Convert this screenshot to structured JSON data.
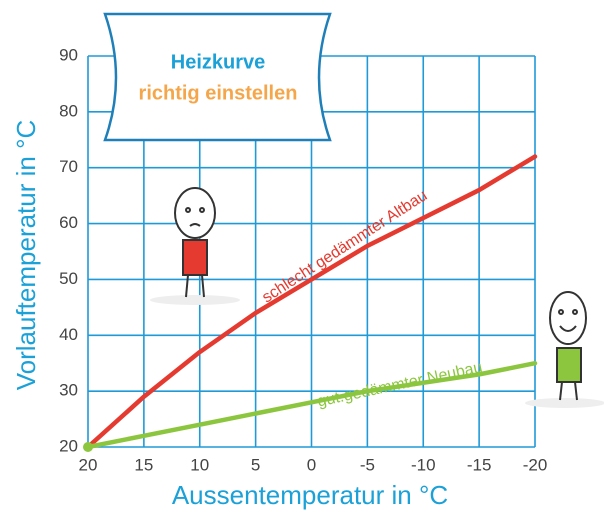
{
  "chart_data": {
    "type": "line",
    "title": "Heizkurve",
    "subtitle": "richtig einstellen",
    "x_label": "Aussentemperatur in °C",
    "y_label": "Vorlauftemperatur in °C",
    "x": [
      20,
      15,
      10,
      5,
      0,
      -5,
      -10,
      -15,
      -20
    ],
    "series": [
      {
        "name": "schlecht gedämmter Altbau",
        "color": "#e53a2f",
        "values": [
          20,
          29,
          37,
          44,
          50,
          56,
          61,
          66,
          72
        ]
      },
      {
        "name": "gut.gedämmter Neubau",
        "color": "#8cc63f",
        "values": [
          20,
          22,
          24,
          26,
          28,
          30,
          31.5,
          33,
          35
        ]
      }
    ],
    "xlim": [
      20,
      -20
    ],
    "xticks": [
      20,
      15,
      10,
      5,
      0,
      -5,
      -10,
      -15,
      -20
    ],
    "ylim": [
      20,
      90
    ],
    "yticks": [
      20,
      30,
      40,
      50,
      60,
      70,
      80,
      90
    ],
    "grid": true
  }
}
